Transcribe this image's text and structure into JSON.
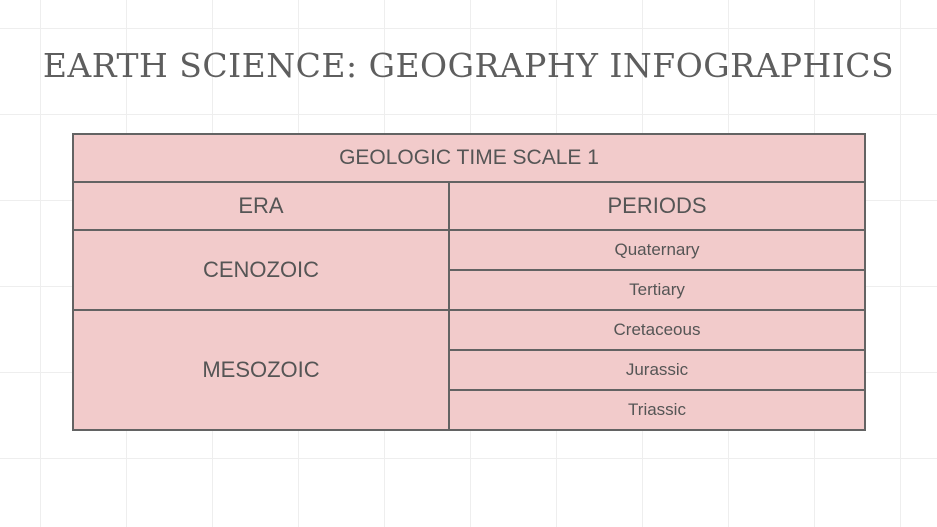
{
  "slide": {
    "title": "EARTH SCIENCE: GEOGRAPHY INFOGRAPHICS"
  },
  "table": {
    "title": "GEOLOGIC TIME SCALE 1",
    "headers": {
      "era": "ERA",
      "periods": "PERIODS"
    },
    "eras": [
      {
        "name": "CENOZOIC",
        "periods": [
          "Quaternary",
          "Tertiary"
        ]
      },
      {
        "name": "MESOZOIC",
        "periods": [
          "Cretaceous",
          "Jurassic",
          "Triassic"
        ]
      }
    ]
  },
  "colors": {
    "cell_fill": "#f2cbcb",
    "border": "#636363",
    "text": "#555555",
    "title_text": "#5e5e5e"
  }
}
